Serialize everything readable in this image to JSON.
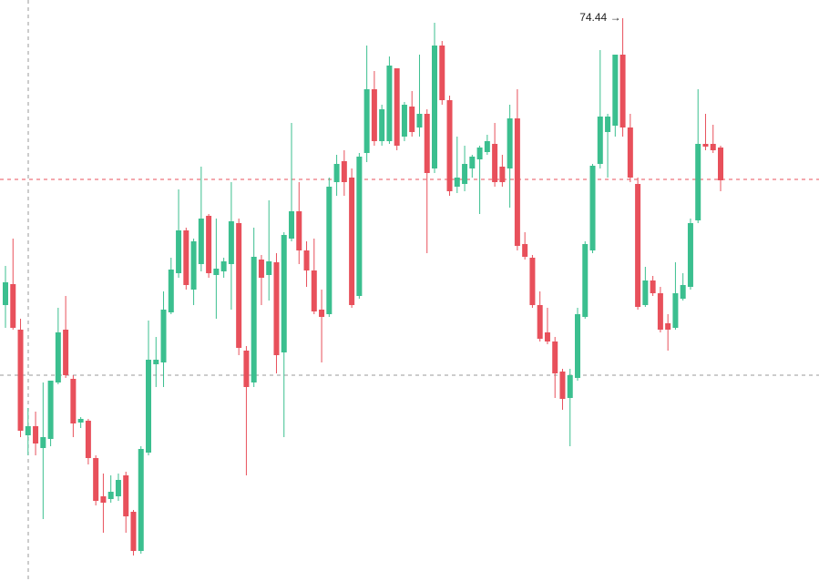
{
  "chart_data": {
    "type": "candlestick",
    "up_color": "#3bbf8f",
    "down_color": "#e8505b",
    "ylim": [
      68.26,
      74.64
    ],
    "max_label": {
      "value": 74.44,
      "label": "74.44 →"
    },
    "open": [
      71.29,
      71.52,
      71.02,
      69.86,
      69.96,
      69.72,
      69.82,
      70.44,
      71.02,
      70.48,
      70.0,
      70.02,
      69.61,
      69.19,
      69.16,
      69.19,
      69.42,
      69.02,
      68.59,
      69.67,
      70.64,
      70.66,
      71.21,
      71.64,
      72.11,
      71.46,
      71.74,
      72.27,
      71.62,
      71.66,
      71.74,
      72.19,
      70.79,
      70.44,
      71.79,
      71.62,
      71.76,
      70.77,
      72.02,
      72.32,
      71.89,
      71.67,
      71.24,
      71.19,
      72.64,
      72.87,
      72.69,
      71.39,
      72.96,
      73.66,
      73.09,
      73.09,
      73.89,
      73.14,
      73.47,
      73.24,
      73.39,
      72.79,
      74.14,
      73.54,
      72.59,
      72.62,
      72.79,
      72.89,
      72.97,
      73.06,
      72.81,
      72.79,
      73.34,
      71.96,
      71.81,
      71.29,
      70.99,
      70.89,
      70.56,
      70.27,
      70.49,
      71.16,
      71.89,
      72.84,
      73.19,
      73.26,
      74.04,
      73.24,
      72.62,
      71.29,
      71.56,
      71.42,
      71.09,
      71.04,
      71.36,
      71.49,
      72.22,
      73.06,
      73.06,
      73.02
    ],
    "high": [
      71.72,
      72.02,
      71.14,
      70.16,
      70.12,
      70.44,
      70.46,
      71.26,
      71.39,
      70.52,
      70.06,
      70.04,
      69.64,
      69.44,
      69.42,
      69.44,
      69.46,
      69.04,
      69.74,
      71.12,
      70.94,
      71.44,
      71.81,
      72.56,
      72.14,
      72.02,
      72.81,
      72.29,
      72.24,
      71.81,
      72.64,
      72.24,
      70.84,
      72.14,
      71.84,
      72.44,
      71.86,
      72.09,
      73.29,
      72.64,
      71.99,
      72.02,
      71.46,
      72.69,
      72.94,
      72.99,
      72.79,
      72.96,
      74.14,
      73.86,
      73.49,
      74.02,
      73.89,
      73.52,
      73.64,
      74.04,
      73.44,
      74.39,
      74.19,
      73.59,
      73.14,
      73.04,
      72.94,
      73.04,
      73.16,
      73.29,
      72.94,
      73.49,
      73.66,
      72.09,
      71.84,
      71.44,
      71.26,
      70.94,
      70.59,
      70.59,
      71.26,
      71.99,
      72.84,
      74.09,
      73.39,
      74.04,
      74.44,
      73.39,
      72.69,
      71.71,
      71.61,
      71.49,
      71.19,
      71.76,
      71.64,
      72.24,
      73.66,
      73.39,
      73.27,
      73.04
    ],
    "low": [
      71.04,
      71.02,
      69.84,
      69.64,
      69.64,
      68.94,
      69.74,
      70.42,
      70.49,
      69.84,
      69.94,
      69.54,
      69.09,
      68.79,
      69.12,
      69.14,
      68.79,
      68.54,
      68.56,
      69.64,
      70.39,
      70.39,
      71.19,
      71.59,
      71.46,
      71.29,
      71.66,
      71.59,
      71.14,
      71.59,
      71.24,
      70.74,
      69.42,
      70.39,
      71.29,
      71.34,
      70.54,
      69.84,
      71.99,
      71.74,
      71.49,
      71.19,
      70.66,
      71.16,
      72.49,
      72.49,
      71.26,
      71.36,
      72.86,
      73.04,
      73.04,
      73.06,
      72.99,
      73.09,
      73.14,
      73.14,
      71.86,
      72.74,
      73.49,
      72.49,
      72.52,
      72.54,
      72.69,
      72.29,
      72.94,
      72.59,
      72.59,
      72.36,
      71.89,
      71.79,
      71.26,
      70.89,
      70.86,
      70.27,
      70.14,
      69.74,
      70.46,
      71.14,
      71.86,
      72.79,
      72.69,
      73.14,
      73.14,
      72.64,
      71.24,
      71.27,
      71.39,
      70.99,
      70.79,
      71.02,
      71.34,
      71.46,
      72.19,
      72.99,
      72.96,
      72.54
    ],
    "close": [
      71.54,
      71.04,
      69.91,
      69.96,
      69.77,
      69.84,
      70.46,
      70.99,
      70.52,
      69.99,
      70.04,
      69.61,
      69.14,
      69.12,
      69.24,
      69.37,
      68.97,
      68.59,
      69.71,
      70.69,
      70.69,
      71.24,
      71.68,
      72.11,
      71.51,
      71.99,
      72.24,
      71.64,
      71.69,
      71.77,
      72.21,
      70.82,
      70.39,
      71.82,
      71.59,
      71.77,
      70.74,
      72.06,
      72.32,
      71.89,
      71.67,
      71.22,
      71.16,
      72.59,
      72.84,
      72.64,
      71.29,
      72.92,
      73.66,
      73.09,
      73.44,
      73.92,
      73.04,
      73.49,
      73.19,
      73.39,
      72.74,
      74.14,
      73.54,
      72.54,
      72.69,
      72.84,
      72.92,
      73.02,
      73.09,
      72.64,
      72.64,
      73.34,
      71.94,
      71.82,
      71.29,
      70.92,
      70.89,
      70.54,
      70.26,
      70.52,
      71.19,
      71.96,
      72.82,
      73.36,
      73.36,
      74.04,
      73.24,
      72.69,
      71.27,
      71.56,
      71.42,
      71.02,
      71.02,
      71.42,
      71.51,
      72.19,
      73.06,
      73.03,
      72.99,
      72.66
    ]
  }
}
